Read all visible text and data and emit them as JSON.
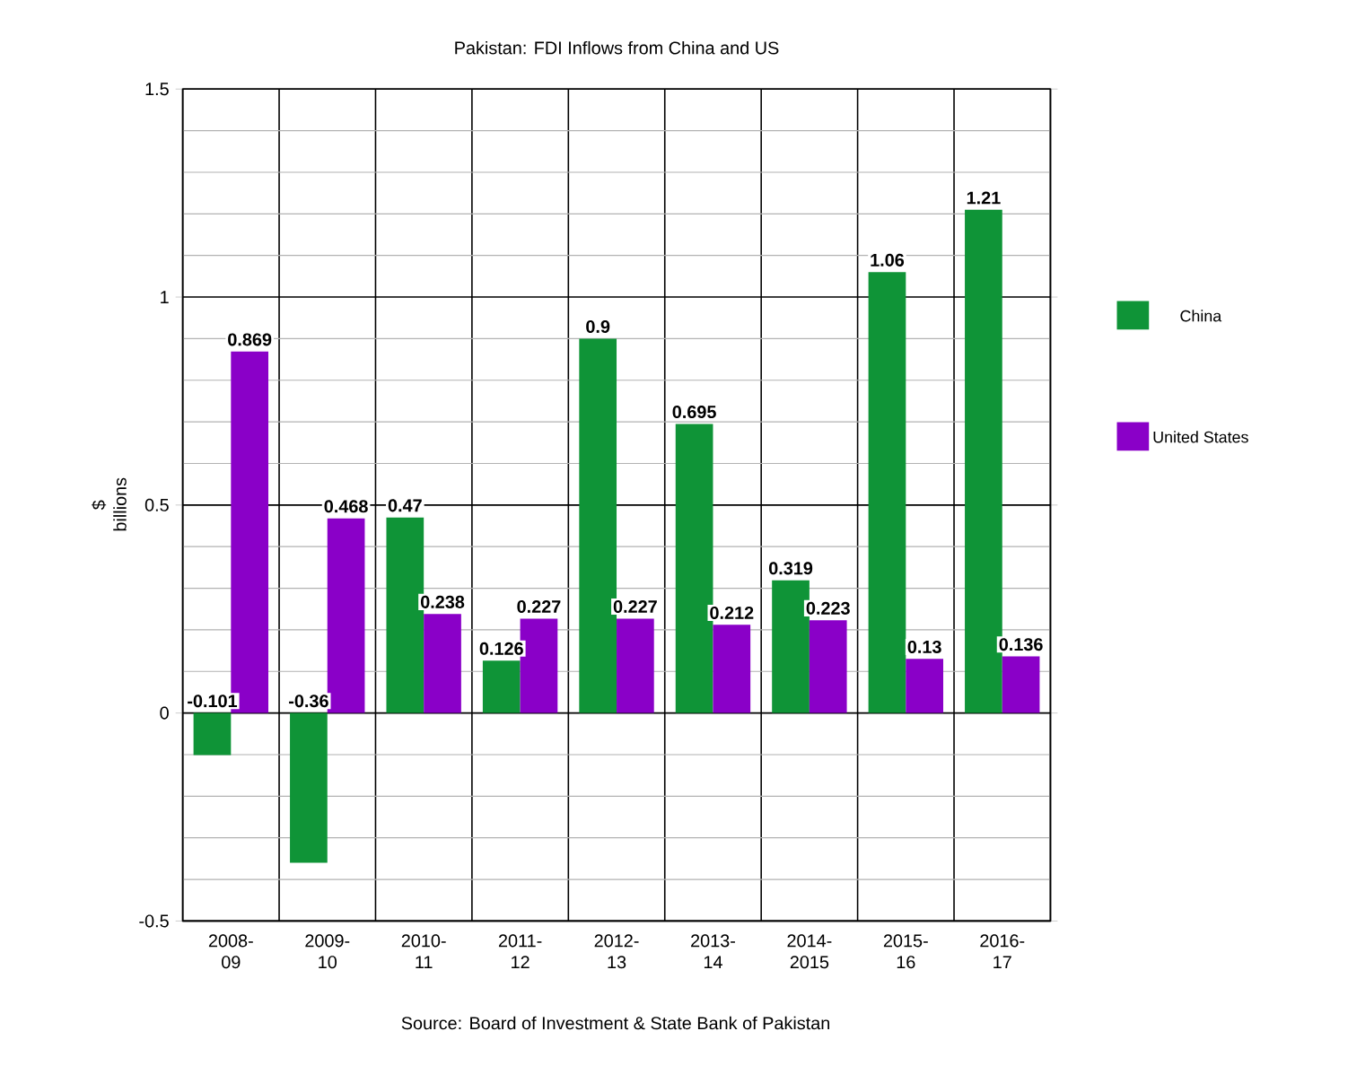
{
  "chart_data": {
    "type": "bar",
    "title": "Pakistan: FDI Inflows from China and US",
    "ylabel": "$ billions",
    "categories": [
      "2008-09",
      "2009-10",
      "2010-11",
      "2011-12",
      "2012-13",
      "2013-14",
      "2014-2015",
      "2015-16",
      "2016-17"
    ],
    "series": [
      {
        "name": "China",
        "color": "#0f9437",
        "values": [
          -0.101,
          -0.36,
          0.47,
          0.126,
          0.9,
          0.695,
          0.319,
          1.06,
          1.21
        ]
      },
      {
        "name": "United States",
        "color": "#8a00c8",
        "values": [
          0.869,
          0.468,
          0.238,
          0.227,
          0.227,
          0.212,
          0.223,
          0.13,
          0.136
        ]
      }
    ],
    "ylim": [
      -0.5,
      1.5
    ],
    "yticks": [
      -0.5,
      0,
      0.5,
      1,
      1.5
    ],
    "grid": true,
    "legend": "right",
    "data_labels": true,
    "annotations": [
      "Source: Board of Investment & State Bank of Pakistan"
    ]
  }
}
